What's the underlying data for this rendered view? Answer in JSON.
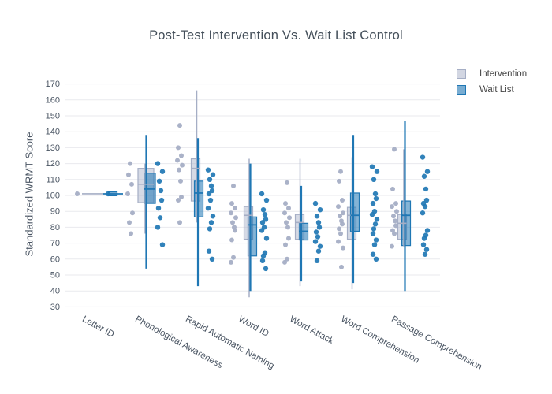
{
  "chart_data": {
    "type": "box",
    "title": "Post-Test Intervention Vs. Wait List Control",
    "xlabel": "",
    "ylabel": "Standardized WRMT Score",
    "ylim": [
      30,
      170
    ],
    "ytick_step": 10,
    "grid": true,
    "legend_position": "top-right",
    "categories": [
      "Letter ID",
      "Phonological Awareness",
      "Rapid Automatic Naming",
      "Word ID",
      "Word Attack",
      "Word Comprehension",
      "Passage Comprehension"
    ],
    "series": [
      {
        "name": "Intervention",
        "color": "#a5aec5",
        "fill": "rgba(165,174,197,0.45)",
        "boxes": [
          {
            "low": 101,
            "q1": 101,
            "med": 101,
            "q3": 101,
            "high": 101
          },
          {
            "low": 76,
            "q1": 95.5,
            "med": 107,
            "q3": 117,
            "high": 120
          },
          {
            "low": 83,
            "q1": 96.5,
            "med": 117,
            "q3": 123,
            "high": 166
          },
          {
            "low": 36,
            "q1": 72.5,
            "med": 87.5,
            "q3": 93,
            "high": 123
          },
          {
            "low": 43,
            "q1": 72.5,
            "med": 83,
            "q3": 88,
            "high": 123
          },
          {
            "low": 41,
            "q1": 72.5,
            "med": 87.5,
            "q3": 92.5,
            "high": 124
          },
          {
            "low": 68,
            "q1": 72.5,
            "med": 82.5,
            "q3": 88,
            "high": 129
          }
        ],
        "points": [
          [
            101
          ],
          [
            120,
            113,
            107,
            101,
            89,
            83,
            76
          ],
          [
            144,
            130,
            125,
            122,
            119,
            116,
            109,
            99,
            97,
            83
          ],
          [
            106,
            95,
            92,
            89,
            86,
            83,
            80,
            78,
            72,
            61,
            58
          ],
          [
            108,
            95,
            92,
            89,
            86,
            83,
            80,
            73,
            69,
            60,
            58
          ],
          [
            115,
            109,
            97,
            93,
            89,
            87,
            84,
            82,
            79,
            76,
            71,
            67,
            55
          ],
          [
            129,
            104,
            95,
            93,
            90,
            87,
            84,
            81,
            78,
            76,
            68
          ]
        ]
      },
      {
        "name": "Wait List",
        "color": "#1f77b4",
        "fill": "rgba(31,119,180,0.55)",
        "boxes": [
          {
            "low": 101,
            "q1": 99.8,
            "med": 101,
            "q3": 102.2,
            "high": 101
          },
          {
            "low": 54,
            "q1": 95,
            "med": 104,
            "q3": 114,
            "high": 138
          },
          {
            "low": 43,
            "q1": 86.5,
            "med": 101.5,
            "q3": 109,
            "high": 136
          },
          {
            "low": 40,
            "q1": 62,
            "med": 81.5,
            "q3": 86.5,
            "high": 120
          },
          {
            "low": 46,
            "q1": 72,
            "med": 77.5,
            "q3": 82.5,
            "high": 106
          },
          {
            "low": 45,
            "q1": 77.5,
            "med": 87.5,
            "q3": 101.5,
            "high": 138
          },
          {
            "low": 40,
            "q1": 68.5,
            "med": 87.5,
            "q3": 96.5,
            "high": 147
          }
        ],
        "points": [
          [
            101
          ],
          [
            120,
            115,
            109,
            103,
            97,
            92,
            86,
            80,
            69
          ],
          [
            116,
            113,
            110,
            106,
            103,
            101,
            97,
            92,
            87,
            83,
            79,
            65,
            60
          ],
          [
            101,
            97,
            91,
            88,
            85,
            83,
            80,
            78,
            73,
            64,
            62,
            59,
            54
          ],
          [
            95,
            91,
            87,
            83,
            80,
            77,
            74,
            71,
            68,
            65,
            59
          ],
          [
            118,
            115,
            110,
            101,
            98,
            95,
            90,
            88,
            85,
            82,
            79,
            76,
            72,
            69,
            63,
            60
          ],
          [
            124,
            115,
            112,
            104,
            97,
            95,
            93,
            89,
            78,
            75,
            73,
            69,
            66,
            63
          ]
        ]
      }
    ]
  },
  "colors": {
    "intervention": "#a5aec5",
    "wait_list": "#1f77b4",
    "gridline": "#e9eaee",
    "axis_text": "#4a5563",
    "title_text": "#444f5a"
  }
}
